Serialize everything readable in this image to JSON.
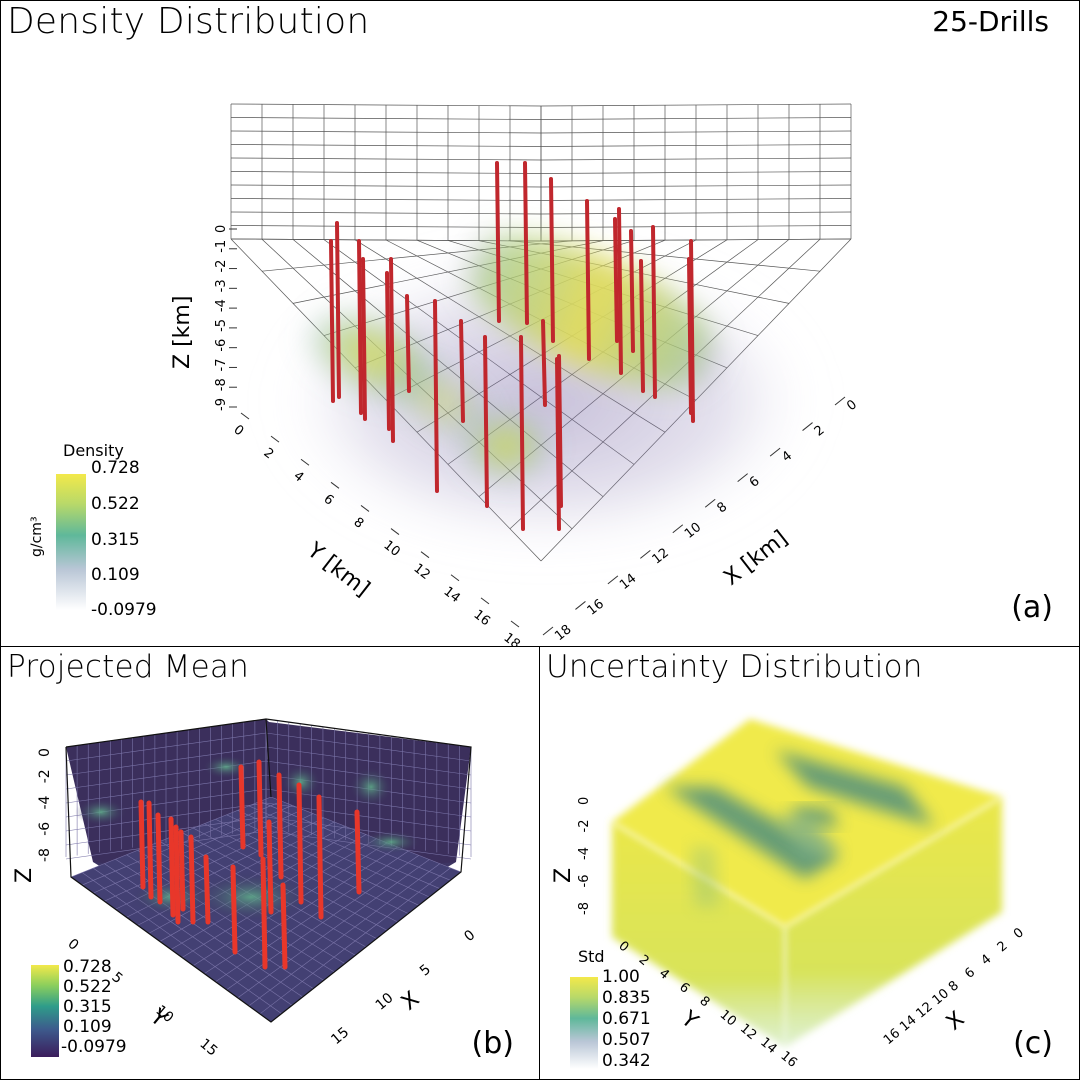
{
  "panel_a": {
    "title": "Density Distribution",
    "badge": "25-Drills",
    "corner": "(a)",
    "xlabel": "X [km]",
    "ylabel": "Y [km]",
    "zlabel": "Z [km]",
    "x_ticks": [
      "0",
      "2",
      "4",
      "6",
      "8",
      "10",
      "12",
      "14",
      "16",
      "18"
    ],
    "y_ticks": [
      "0",
      "2",
      "4",
      "6",
      "8",
      "10",
      "12",
      "14",
      "16",
      "18"
    ],
    "z_ticks": [
      "-9",
      "-8",
      "-7",
      "-6",
      "-5",
      "-4",
      "-3",
      "-2",
      "-1",
      "0"
    ],
    "legend": {
      "title": "Density",
      "unit": "g/cm³",
      "labels": [
        "0.728",
        "0.522",
        "0.315",
        "0.109",
        "-0.0979"
      ]
    }
  },
  "panel_b": {
    "title": "Projected Mean",
    "corner": "(b)",
    "xlabel": "X",
    "ylabel": "Y",
    "zlabel": "Z",
    "x_ticks": [
      "0",
      "5",
      "10",
      "15"
    ],
    "y_ticks": [
      "0",
      "5",
      "10",
      "15"
    ],
    "z_ticks": [
      "-8",
      "-6",
      "-4",
      "-2",
      "0"
    ],
    "legend": {
      "labels": [
        "0.728",
        "0.522",
        "0.315",
        "0.109",
        "-0.0979"
      ]
    }
  },
  "panel_c": {
    "title": "Uncertainty Distribution",
    "corner": "(c)",
    "xlabel": "X",
    "ylabel": "Y",
    "zlabel": "Z",
    "x_ticks": [
      "0",
      "2",
      "4",
      "6",
      "8",
      "10",
      "12",
      "14",
      "16"
    ],
    "y_ticks": [
      "0",
      "2",
      "4",
      "6",
      "8",
      "10",
      "12",
      "14",
      "16"
    ],
    "z_ticks": [
      "-8",
      "-6",
      "-4",
      "-2",
      "0"
    ],
    "legend": {
      "title": "Std",
      "labels": [
        "1.00",
        "0.835",
        "0.671",
        "0.507",
        "0.342"
      ]
    }
  },
  "colors": {
    "drill": "#c0272d",
    "drill_b": "#e8372a",
    "viridis_top": "#f0e442",
    "viridis_bottom": "#3b2a5c",
    "box_b": "#3a2f5b"
  }
}
